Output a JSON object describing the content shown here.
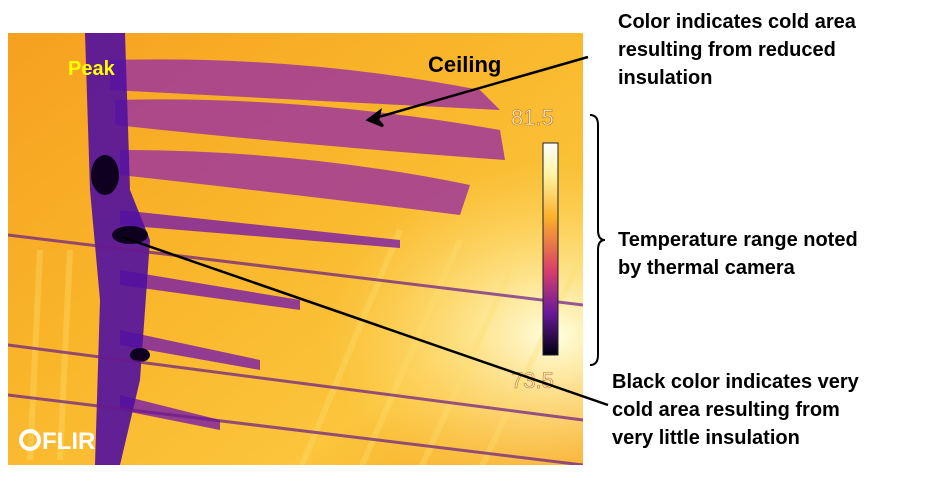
{
  "image": {
    "labels": {
      "peak": "Peak",
      "ceiling": "Ceiling"
    },
    "scale": {
      "max": "81.5",
      "min": "73.5"
    },
    "logo": "FLIR"
  },
  "annotations": [
    {
      "lines": [
        "Color indicates cold area",
        "resulting from reduced",
        "insulation"
      ]
    },
    {
      "lines": [
        "Temperature range noted",
        "by thermal camera"
      ]
    },
    {
      "lines": [
        "Black color indicates very",
        "cold area resulting from",
        "very little insulation"
      ]
    }
  ]
}
